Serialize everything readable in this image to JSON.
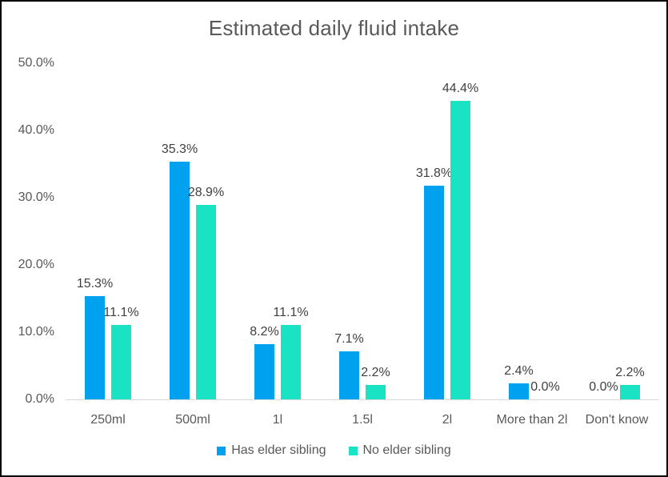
{
  "chart_data": {
    "type": "bar",
    "title": "Estimated daily fluid intake",
    "categories": [
      "250ml",
      "500ml",
      "1l",
      "1.5l",
      "2l",
      "More than 2l",
      "Don't know"
    ],
    "series": [
      {
        "name": "Has elder sibling",
        "color": "#00A2F0",
        "values": [
          15.3,
          35.3,
          8.2,
          7.1,
          31.8,
          2.4,
          0.0
        ],
        "labels": [
          "15.3%",
          "35.3%",
          "8.2%",
          "7.1%",
          "31.8%",
          "2.4%",
          "0.0%"
        ]
      },
      {
        "name": "No elder sibling",
        "color": "#19E3C2",
        "values": [
          11.1,
          28.9,
          11.1,
          2.2,
          44.4,
          0.0,
          2.2
        ],
        "labels": [
          "11.1%",
          "28.9%",
          "11.1%",
          "2.2%",
          "44.4%",
          "0.0%",
          "2.2%"
        ]
      }
    ],
    "ylim": [
      0,
      50
    ],
    "yticks": [
      0,
      10,
      20,
      30,
      40,
      50
    ],
    "ytick_labels": [
      "0.0%",
      "10.0%",
      "20.0%",
      "30.0%",
      "40.0%",
      "50.0%"
    ],
    "grid": false,
    "data_labels": true,
    "legend_position": "bottom"
  },
  "colors": {
    "series_blue": "#00A2F0",
    "series_teal": "#19E3C2",
    "title_text": "#595959",
    "axis_text": "#595959",
    "data_label_text": "#404040",
    "axis_line": "#D9D9D9",
    "border": "#000000",
    "background": "#FFFFFF"
  }
}
